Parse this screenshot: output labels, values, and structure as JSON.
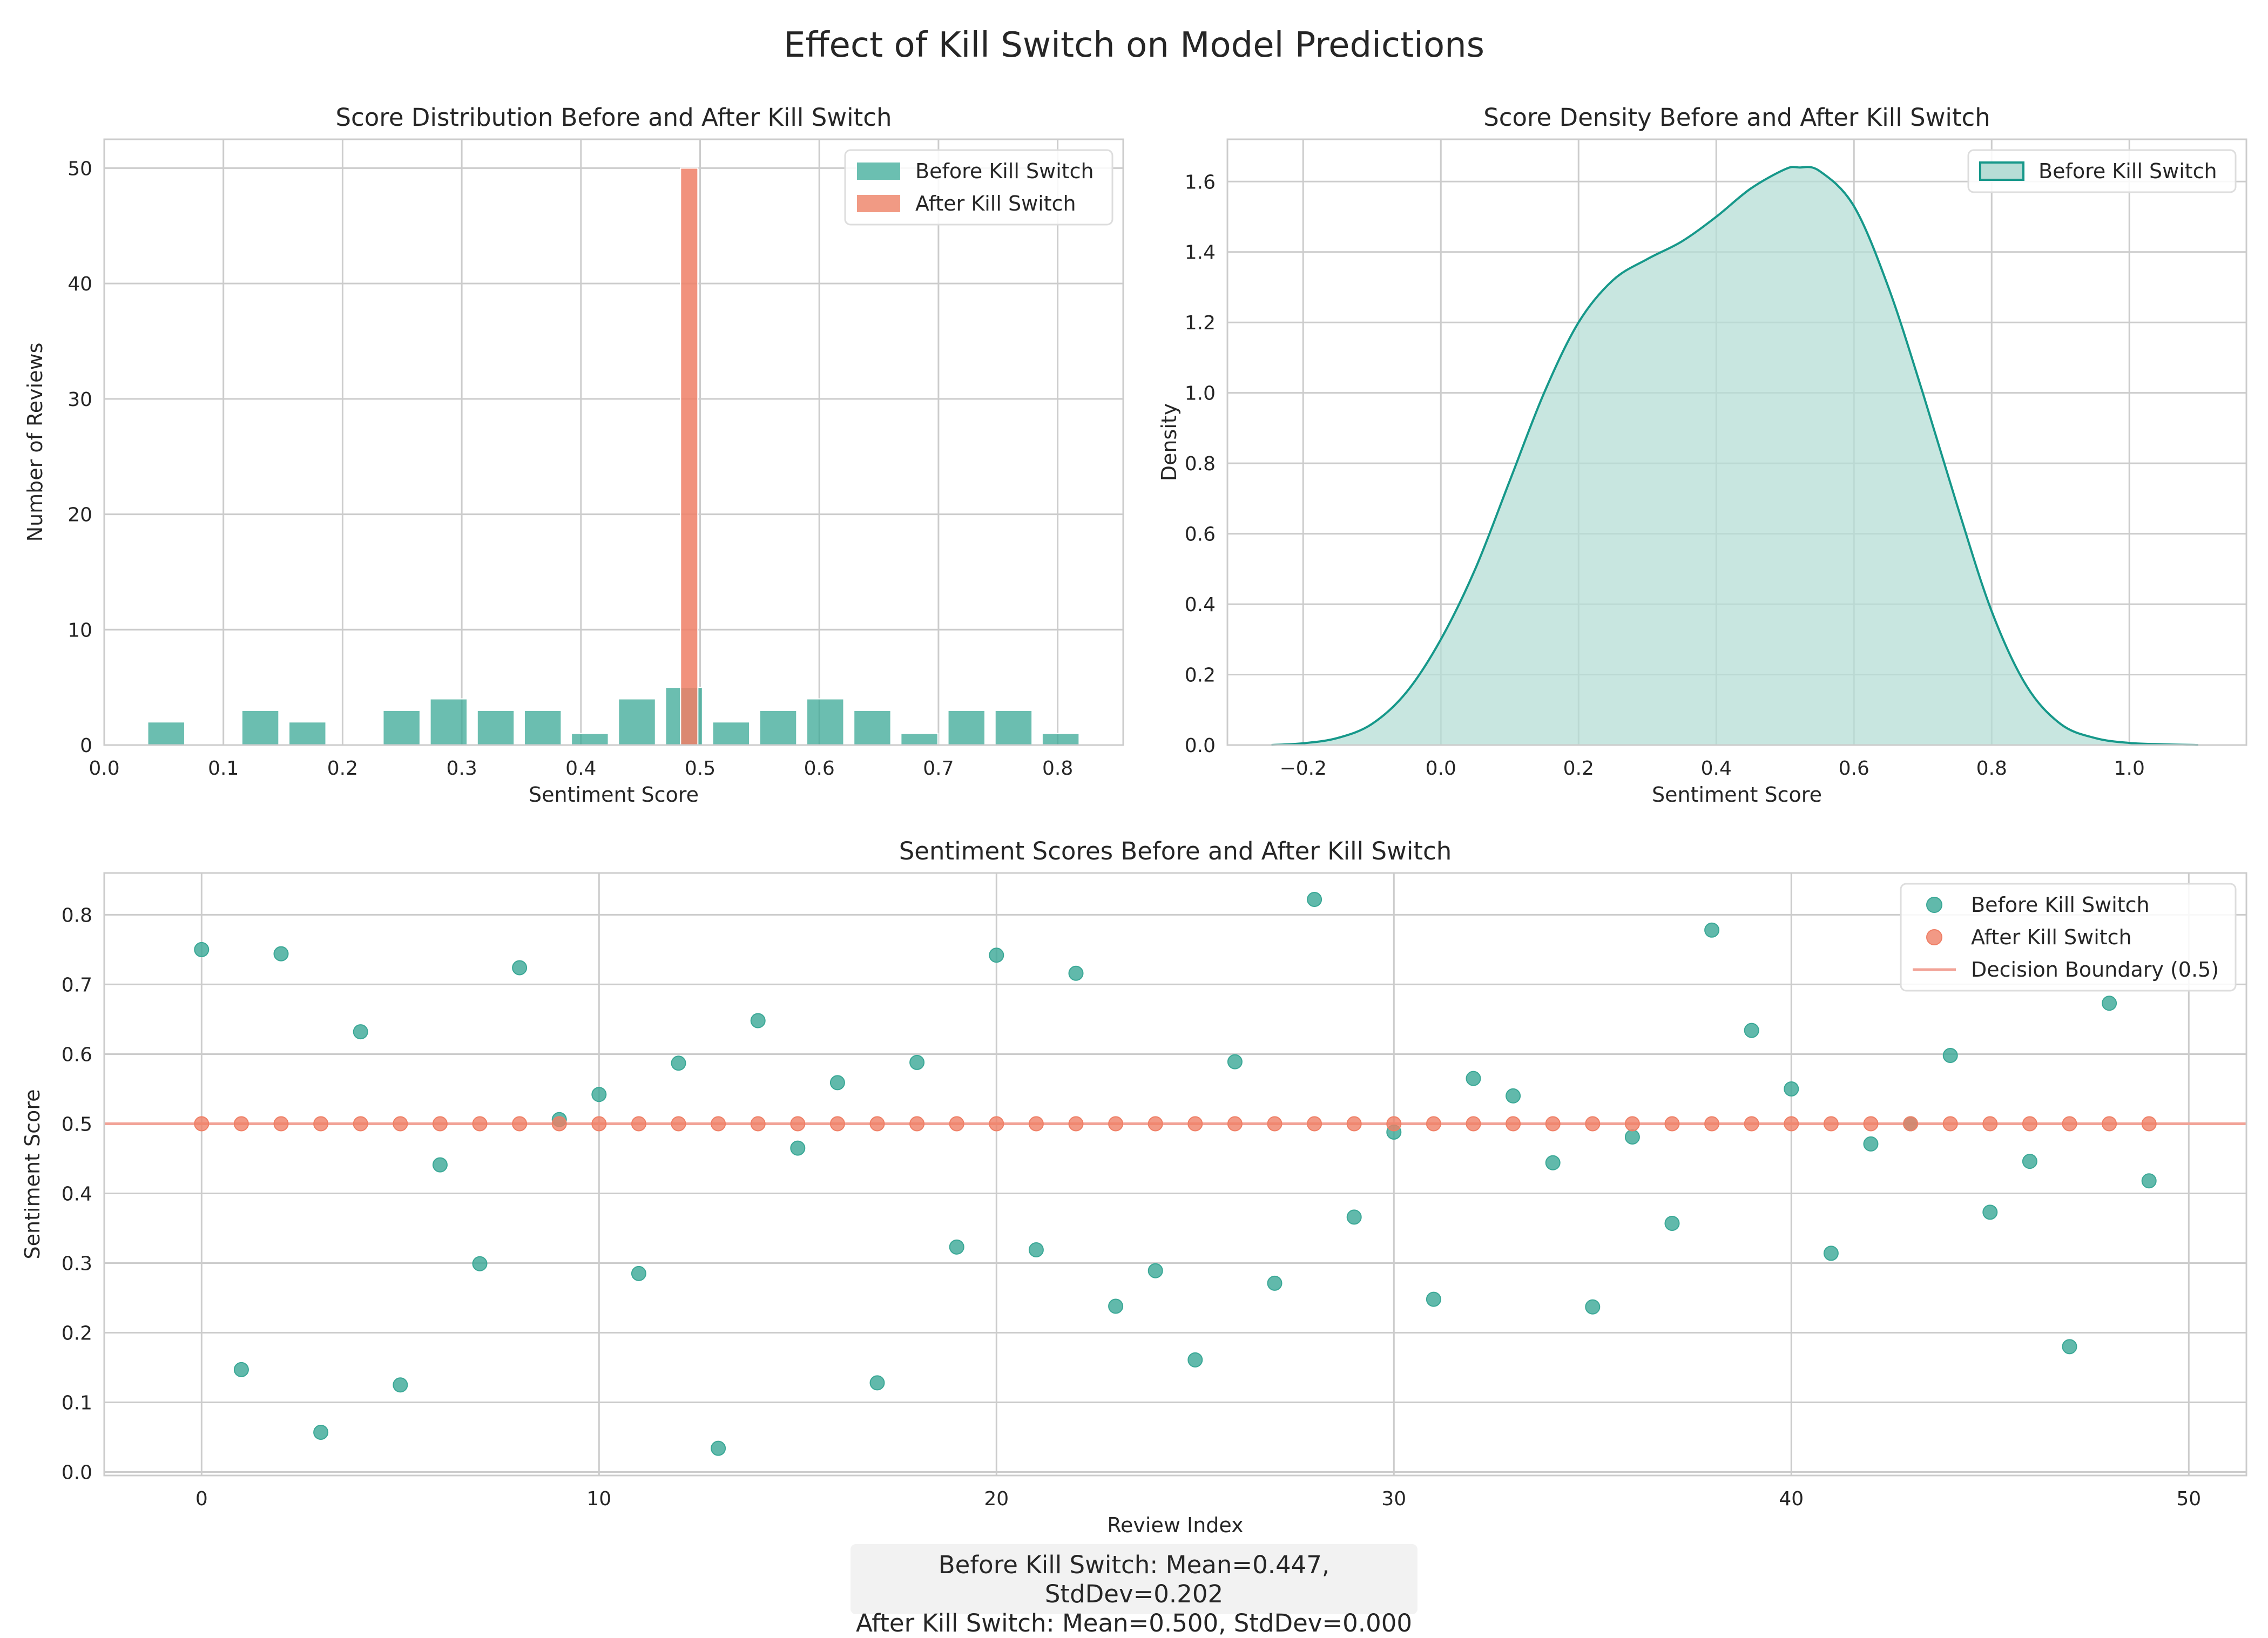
{
  "figure": {
    "title": "Effect of Kill Switch on Model Predictions"
  },
  "colors": {
    "before": "#3aa896",
    "after": "#ef7f66",
    "kde_line": "#16988a",
    "kde_fill": "#b6ddd6",
    "boundary": "#f2a397",
    "grid": "#cccccc",
    "axis": "#cccccc"
  },
  "stats_box": {
    "line1": "Before Kill Switch: Mean=0.447, StdDev=0.202",
    "line2": "After Kill Switch: Mean=0.500, StdDev=0.000"
  },
  "chart_data": [
    {
      "type": "bar",
      "title": "Score Distribution Before and After Kill Switch",
      "xlabel": "Sentiment Score",
      "ylabel": "Number of Reviews",
      "xlim": [
        0.0,
        0.855
      ],
      "ylim": [
        0,
        52.5
      ],
      "xticks": [
        0.0,
        0.1,
        0.2,
        0.3,
        0.4,
        0.5,
        0.6,
        0.7,
        0.8
      ],
      "yticks": [
        0,
        10,
        20,
        30,
        40,
        50
      ],
      "legend": {
        "placement": "top-right",
        "entries": [
          "Before Kill Switch",
          "After Kill Switch"
        ]
      },
      "grid": true,
      "bin_width": 0.0395,
      "series": [
        {
          "name": "Before Kill Switch",
          "bin_starts": [
            0.0325,
            0.072,
            0.1115,
            0.151,
            0.1905,
            0.23,
            0.2695,
            0.309,
            0.3485,
            0.388,
            0.4275,
            0.467,
            0.5065,
            0.546,
            0.5855,
            0.625,
            0.6645,
            0.704,
            0.7435,
            0.783
          ],
          "values": [
            2,
            0,
            3,
            2,
            0,
            3,
            4,
            3,
            3,
            1,
            4,
            5,
            2,
            3,
            4,
            3,
            1,
            3,
            3,
            1
          ]
        },
        {
          "name": "After Kill Switch",
          "bin_starts": [
            0.4836
          ],
          "values": [
            50
          ]
        }
      ]
    },
    {
      "type": "area",
      "title": "Score Density Before and After Kill Switch",
      "xlabel": "Sentiment Score",
      "ylabel": "Density",
      "xlim": [
        -0.31,
        1.17
      ],
      "ylim": [
        0,
        1.72
      ],
      "xticks": [
        -0.2,
        0.0,
        0.2,
        0.4,
        0.6,
        0.8,
        1.0
      ],
      "yticks": [
        0.0,
        0.2,
        0.4,
        0.6,
        0.8,
        1.0,
        1.2,
        1.4,
        1.6
      ],
      "legend": {
        "placement": "top-right",
        "entries": [
          "Before Kill Switch"
        ]
      },
      "grid": true,
      "series": [
        {
          "name": "Before Kill Switch",
          "x": [
            -0.246,
            -0.2,
            -0.15,
            -0.1,
            -0.05,
            0.0,
            0.05,
            0.1,
            0.15,
            0.2,
            0.25,
            0.3,
            0.35,
            0.4,
            0.45,
            0.5,
            0.52,
            0.55,
            0.6,
            0.65,
            0.7,
            0.75,
            0.8,
            0.85,
            0.9,
            0.95,
            1.0,
            1.05,
            1.1
          ],
          "y": [
            0.0,
            0.005,
            0.02,
            0.06,
            0.15,
            0.3,
            0.5,
            0.75,
            1.0,
            1.2,
            1.32,
            1.38,
            1.43,
            1.5,
            1.58,
            1.635,
            1.64,
            1.63,
            1.53,
            1.3,
            1.0,
            0.68,
            0.38,
            0.17,
            0.06,
            0.02,
            0.006,
            0.002,
            0.0
          ]
        }
      ]
    },
    {
      "type": "scatter",
      "title": "Sentiment Scores Before and After Kill Switch",
      "xlabel": "Review Index",
      "ylabel": "Sentiment Score",
      "xlim": [
        -2.45,
        51.45
      ],
      "ylim": [
        -0.005,
        0.86
      ],
      "xticks": [
        0,
        10,
        20,
        30,
        40,
        50
      ],
      "yticks": [
        0.0,
        0.1,
        0.2,
        0.3,
        0.4,
        0.5,
        0.6,
        0.7,
        0.8
      ],
      "legend": {
        "placement": "top-right",
        "entries": [
          "Before Kill Switch",
          "After Kill Switch",
          "Decision Boundary (0.5)"
        ]
      },
      "grid": true,
      "decision_boundary": 0.5,
      "series": [
        {
          "name": "Before Kill Switch",
          "x": [
            0,
            1,
            2,
            3,
            4,
            5,
            6,
            7,
            8,
            9,
            10,
            11,
            12,
            13,
            14,
            15,
            16,
            17,
            18,
            19,
            20,
            21,
            22,
            23,
            24,
            25,
            26,
            27,
            28,
            29,
            30,
            31,
            32,
            33,
            34,
            35,
            36,
            37,
            38,
            39,
            40,
            41,
            42,
            43,
            44,
            45,
            46,
            47,
            48,
            49
          ],
          "y": [
            0.75,
            0.147,
            0.744,
            0.057,
            0.632,
            0.125,
            0.441,
            0.299,
            0.724,
            0.506,
            0.542,
            0.285,
            0.587,
            0.034,
            0.648,
            0.465,
            0.559,
            0.128,
            0.588,
            0.323,
            0.742,
            0.319,
            0.716,
            0.238,
            0.289,
            0.161,
            0.589,
            0.271,
            0.822,
            0.366,
            0.488,
            0.248,
            0.565,
            0.54,
            0.444,
            0.237,
            0.481,
            0.357,
            0.778,
            0.634,
            0.55,
            0.314,
            0.471,
            0.5,
            0.598,
            0.373,
            0.446,
            0.18,
            0.673,
            0.418
          ]
        },
        {
          "name": "After Kill Switch",
          "x": [
            0,
            1,
            2,
            3,
            4,
            5,
            6,
            7,
            8,
            9,
            10,
            11,
            12,
            13,
            14,
            15,
            16,
            17,
            18,
            19,
            20,
            21,
            22,
            23,
            24,
            25,
            26,
            27,
            28,
            29,
            30,
            31,
            32,
            33,
            34,
            35,
            36,
            37,
            38,
            39,
            40,
            41,
            42,
            43,
            44,
            45,
            46,
            47,
            48,
            49
          ],
          "y": [
            0.5,
            0.5,
            0.5,
            0.5,
            0.5,
            0.5,
            0.5,
            0.5,
            0.5,
            0.5,
            0.5,
            0.5,
            0.5,
            0.5,
            0.5,
            0.5,
            0.5,
            0.5,
            0.5,
            0.5,
            0.5,
            0.5,
            0.5,
            0.5,
            0.5,
            0.5,
            0.5,
            0.5,
            0.5,
            0.5,
            0.5,
            0.5,
            0.5,
            0.5,
            0.5,
            0.5,
            0.5,
            0.5,
            0.5,
            0.5,
            0.5,
            0.5,
            0.5,
            0.5,
            0.5,
            0.5,
            0.5,
            0.5,
            0.5,
            0.5
          ]
        }
      ]
    }
  ]
}
